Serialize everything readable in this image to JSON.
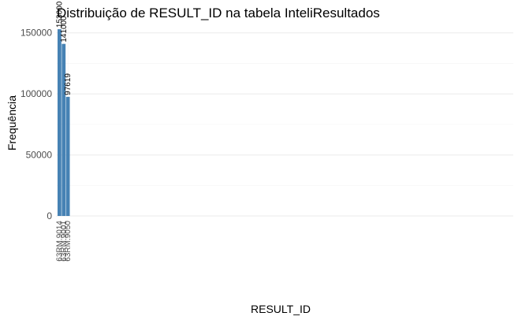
{
  "chart_data": {
    "type": "bar",
    "title": "Distribuição de RESULT_ID na tabela InteliResultados",
    "xlabel": "RESULT_ID",
    "ylabel": "Frequência",
    "ylim": [
      0,
      155000
    ],
    "y_ticks": [
      0,
      50000,
      100000,
      150000
    ],
    "y_tick_labels": [
      "0",
      "50000",
      "100000",
      "150000"
    ],
    "bar_color": "#4682b4",
    "grid": true,
    "legend": "none",
    "categories": [
      "63RM.9014",
      "63RM.9001",
      "63RM.9050"
    ],
    "values": [
      153000,
      141000,
      97619
    ],
    "value_labels": [
      "153000",
      "141000",
      "97619"
    ]
  }
}
